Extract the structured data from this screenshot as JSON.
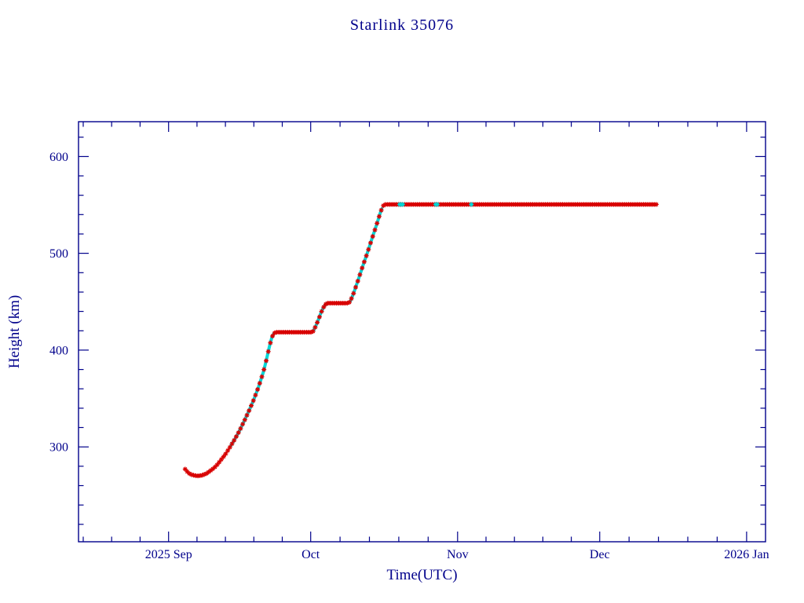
{
  "chart": {
    "background": "#ffffff"
  },
  "chart_data": {
    "type": "line",
    "title": "Starlink 35076",
    "xlabel": "Time(UTC)",
    "ylabel": "Height (km)",
    "x_unit": "days since 2025-09-01 UTC",
    "xlim": [
      -19,
      126
    ],
    "ylim": [
      202,
      636
    ],
    "grid": false,
    "legend": null,
    "x_ticks": [
      {
        "pos": 0,
        "label": "2025 Sep"
      },
      {
        "pos": 30,
        "label": "Oct"
      },
      {
        "pos": 61,
        "label": "Nov"
      },
      {
        "pos": 91,
        "label": "Dec"
      },
      {
        "pos": 122,
        "label": "2026 Jan"
      }
    ],
    "y_ticks": [
      {
        "pos": 300,
        "label": "300"
      },
      {
        "pos": 400,
        "label": "400"
      },
      {
        "pos": 500,
        "label": "500"
      },
      {
        "pos": 600,
        "label": "600"
      }
    ],
    "y_minor_step": 20,
    "x_minor_per_major": 5,
    "colors": {
      "text": "#00008b",
      "axis": "#00008b",
      "marker": "#d80000",
      "line": "#1a1a1a",
      "maneuver": "#00d8d8"
    },
    "keypoints": [
      [
        3.5,
        277
      ],
      [
        4.2,
        273
      ],
      [
        5,
        271
      ],
      [
        6,
        270
      ],
      [
        7,
        270.5
      ],
      [
        8,
        272.5
      ],
      [
        9,
        276
      ],
      [
        10,
        280
      ],
      [
        11,
        286
      ],
      [
        12,
        292.5
      ],
      [
        13,
        300
      ],
      [
        14,
        308
      ],
      [
        15,
        317
      ],
      [
        16,
        327
      ],
      [
        17,
        337.5
      ],
      [
        18,
        349
      ],
      [
        19,
        362
      ],
      [
        20,
        377
      ],
      [
        20.7,
        391
      ],
      [
        21.3,
        404
      ],
      [
        21.8,
        413
      ],
      [
        22.2,
        417
      ],
      [
        22.6,
        418.5
      ],
      [
        30.4,
        418.5
      ],
      [
        31,
        424
      ],
      [
        31.6,
        431
      ],
      [
        32.2,
        439
      ],
      [
        32.8,
        445
      ],
      [
        33.2,
        447.5
      ],
      [
        33.6,
        448.5
      ],
      [
        38.0,
        448.5
      ],
      [
        38.4,
        451
      ],
      [
        39,
        458
      ],
      [
        40,
        472
      ],
      [
        41,
        487
      ],
      [
        42,
        501
      ],
      [
        43,
        516
      ],
      [
        44,
        531
      ],
      [
        44.7,
        542
      ],
      [
        45.2,
        548.5
      ],
      [
        45.6,
        550.5
      ],
      [
        103,
        550.5
      ]
    ],
    "marker_step_days": 0.45,
    "maneuver_segments": [
      [
        13.2,
        22.2
      ],
      [
        30.6,
        33.4
      ],
      [
        38.4,
        45.0
      ]
    ],
    "maneuver_marker_days": [
      48.8,
      49.1,
      49.4,
      56.4,
      56.7,
      63.9
    ]
  }
}
